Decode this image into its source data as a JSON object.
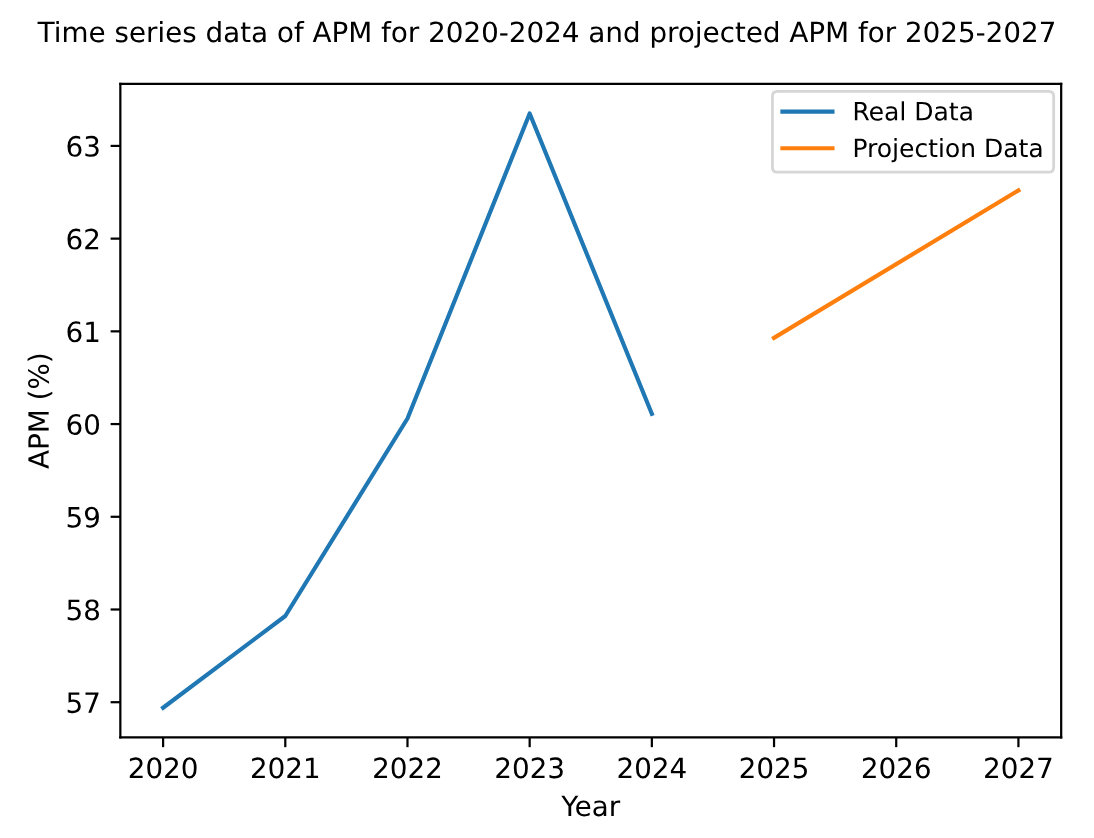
{
  "chart_data": {
    "type": "line",
    "title": "Time series data of APM for 2020-2024 and projected APM for 2025-2027",
    "xlabel": "Year",
    "ylabel": "APM (%)",
    "series": [
      {
        "name": "Real Data",
        "color": "#1f77b4",
        "x": [
          2020,
          2021,
          2022,
          2023,
          2024
        ],
        "values": [
          56.94,
          57.93,
          60.06,
          63.35,
          60.11
        ]
      },
      {
        "name": "Projection Data",
        "color": "#ff7f0e",
        "x": [
          2025,
          2027
        ],
        "values": [
          60.93,
          62.52
        ]
      }
    ],
    "xlim": [
      2019.65,
      2027.35
    ],
    "xticks": [
      2020,
      2021,
      2022,
      2023,
      2024,
      2025,
      2026,
      2027
    ],
    "ylim": [
      56.62,
      63.67
    ],
    "yticks": [
      57,
      58,
      59,
      60,
      61,
      62,
      63
    ],
    "grid": false,
    "legend": "top right",
    "marker": "none",
    "line_style": "solid"
  }
}
